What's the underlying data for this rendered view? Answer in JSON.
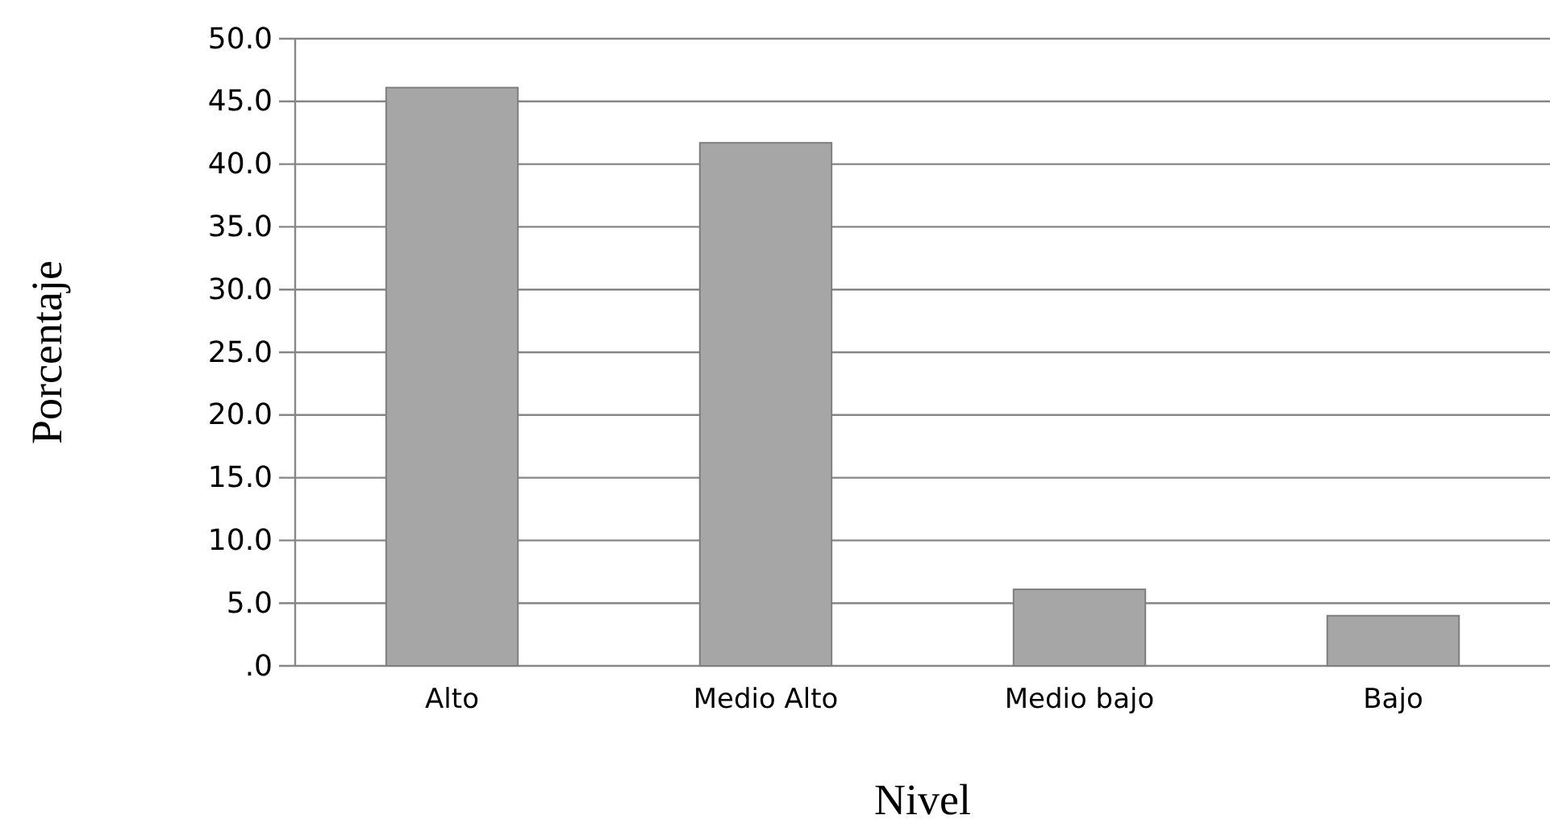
{
  "chart_data": {
    "type": "bar",
    "xlabel": "Nivel",
    "ylabel": "Porcentaje",
    "categories": [
      "Alto",
      "Medio Alto",
      "Medio bajo",
      "Bajo"
    ],
    "values": [
      46.1,
      41.7,
      6.1,
      4.0
    ],
    "color": "#a6a6a6",
    "ylim": [
      0,
      50
    ],
    "yticks": [
      {
        "value": 0,
        "label": ".0"
      },
      {
        "value": 5,
        "label": "5.0"
      },
      {
        "value": 10,
        "label": "10.0"
      },
      {
        "value": 15,
        "label": "15.0"
      },
      {
        "value": 20,
        "label": "20.0"
      },
      {
        "value": 25,
        "label": "25.0"
      },
      {
        "value": 30,
        "label": "30.0"
      },
      {
        "value": 35,
        "label": "35.0"
      },
      {
        "value": 40,
        "label": "40.0"
      },
      {
        "value": 45,
        "label": "45.0"
      },
      {
        "value": 50,
        "label": "50.0"
      }
    ],
    "grid": "y"
  }
}
